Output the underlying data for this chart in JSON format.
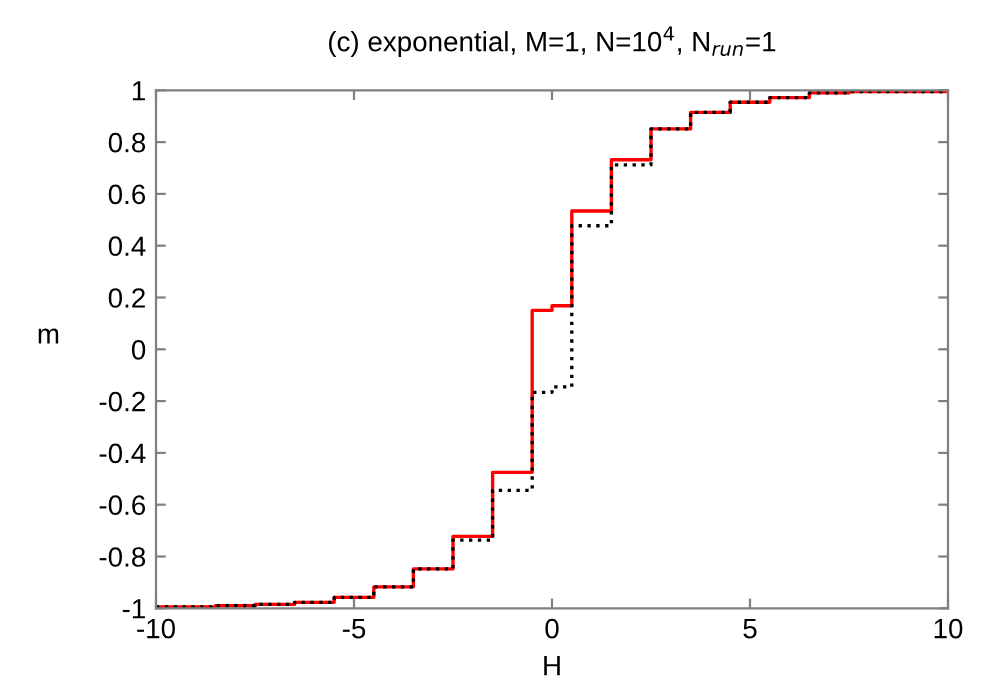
{
  "chart_data": {
    "type": "step",
    "title": "(c) exponential, M=1, N=10$^{4}$, N$_{run}$=1",
    "xlabel": "H",
    "ylabel": "m",
    "xlim": [
      -10,
      10
    ],
    "ylim": [
      -1,
      1
    ],
    "xticks": [
      -10,
      -5,
      0,
      5,
      10
    ],
    "yticks": [
      -1,
      -0.8,
      -0.6,
      -0.4,
      -0.2,
      0,
      0.2,
      0.4,
      0.6,
      0.8,
      1
    ],
    "grid": false,
    "legend": false,
    "series": [
      {
        "color": "#000000",
        "line_style": "dotted",
        "x": [
          -10,
          -8.5,
          -7.5,
          -6.5,
          -5.5,
          -4.5,
          -3.5,
          -2.5,
          -1.5,
          -0.5,
          0,
          0.5,
          1.5,
          2.5,
          3.5,
          4.5,
          5.5,
          6.5,
          7.5,
          10
        ],
        "values": [
          -0.995,
          -0.99,
          -0.985,
          -0.977,
          -0.958,
          -0.917,
          -0.848,
          -0.737,
          -0.545,
          -0.166,
          -0.145,
          0.477,
          0.712,
          0.851,
          0.915,
          0.954,
          0.972,
          0.99,
          0.995,
          0.995
        ]
      },
      {
        "color": "#ff0000",
        "line_style": "solid",
        "x": [
          -10,
          -8.5,
          -7.5,
          -6.5,
          -5.5,
          -4.5,
          -3.5,
          -2.5,
          -1.5,
          -0.5,
          0,
          0.5,
          1.5,
          2.5,
          3.5,
          4.5,
          5.5,
          6.5,
          7.5,
          10
        ],
        "values": [
          -0.995,
          -0.99,
          -0.985,
          -0.977,
          -0.958,
          -0.917,
          -0.848,
          -0.722,
          -0.475,
          0.15,
          0.168,
          0.534,
          0.732,
          0.851,
          0.915,
          0.954,
          0.972,
          0.99,
          0.995,
          0.995
        ]
      }
    ]
  }
}
